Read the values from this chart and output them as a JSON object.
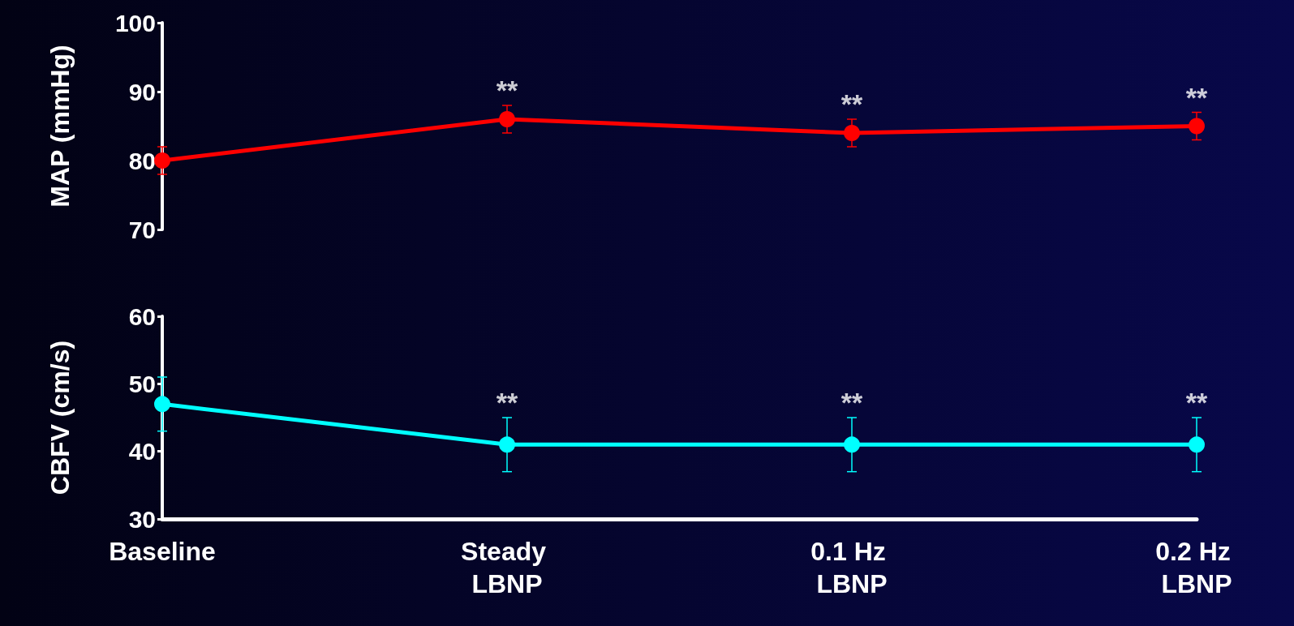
{
  "chart_data": [
    {
      "type": "line",
      "ylabel": "MAP (mmHg)",
      "categories": [
        "Baseline",
        "Steady LBNP",
        "0.1 Hz LBNP",
        "0.2 Hz LBNP"
      ],
      "ylim": [
        70,
        100
      ],
      "yticks": [
        70,
        80,
        90,
        100
      ],
      "tick_labels": "y",
      "marker": "circle",
      "line_style": "solid",
      "series": [
        {
          "color": "#ff0000",
          "values": [
            80,
            86,
            84,
            85
          ],
          "errors": [
            2,
            2,
            2,
            2
          ]
        }
      ],
      "annotations": [
        "**",
        "**",
        "**"
      ]
    },
    {
      "type": "line",
      "ylabel": "CBFV (cm/s)",
      "categories": [
        "Baseline",
        "Steady LBNP",
        "0.1 Hz LBNP",
        "0.2 Hz LBNP"
      ],
      "ylim": [
        30,
        60
      ],
      "yticks": [
        30,
        40,
        50,
        60
      ],
      "marker": "circle",
      "line_style": "solid",
      "series": [
        {
          "color": "#00ffff",
          "values": [
            47,
            41,
            41,
            41
          ],
          "errors": [
            4,
            4,
            4,
            4
          ]
        }
      ],
      "annotations": [
        "**",
        "**",
        "**"
      ]
    }
  ]
}
